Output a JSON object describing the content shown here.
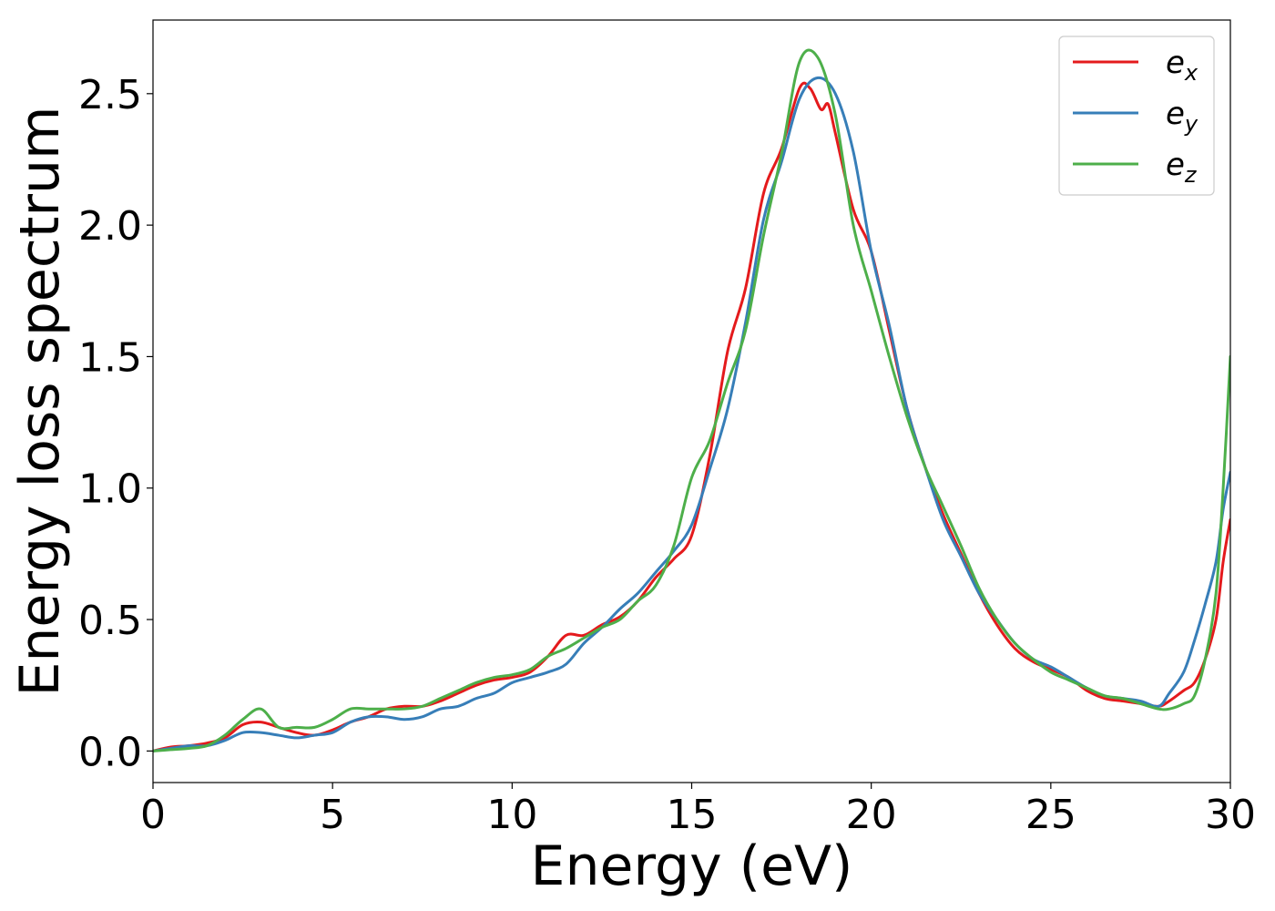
{
  "chart_data": {
    "type": "line",
    "xlabel": "Energy (eV)",
    "ylabel": "Energy loss spectrum",
    "xlim": [
      0,
      30
    ],
    "ylim": [
      -0.12,
      2.78
    ],
    "xticks": [
      0,
      5,
      10,
      15,
      20,
      25,
      30
    ],
    "xtick_labels": [
      "0",
      "5",
      "10",
      "15",
      "20",
      "25",
      "30"
    ],
    "yticks": [
      0.0,
      0.5,
      1.0,
      1.5,
      2.0,
      2.5
    ],
    "ytick_labels": [
      "0.0",
      "0.5",
      "1.0",
      "1.5",
      "2.0",
      "2.5"
    ],
    "grid": false,
    "legend_position": "top-right",
    "series": [
      {
        "name": "e",
        "subscript": "x",
        "color": "#e41a1c",
        "x": [
          0,
          0.5,
          1,
          1.5,
          2,
          2.5,
          3,
          3.5,
          4,
          4.5,
          5,
          5.5,
          6,
          6.5,
          7,
          7.5,
          8,
          8.5,
          9,
          9.5,
          10,
          10.5,
          11,
          11.5,
          12,
          12.5,
          13,
          13.5,
          14,
          14.5,
          15,
          15.5,
          16,
          16.5,
          17,
          17.5,
          18,
          18.3,
          18.6,
          18.8,
          19,
          19.5,
          20,
          20.5,
          21,
          21.5,
          22,
          22.5,
          23,
          23.5,
          24,
          24.5,
          25,
          25.5,
          26,
          26.5,
          27,
          27.5,
          28,
          28.3,
          28.7,
          29,
          29.3,
          29.6,
          29.8,
          30
        ],
        "values": [
          0.0,
          0.015,
          0.02,
          0.03,
          0.05,
          0.1,
          0.11,
          0.09,
          0.07,
          0.06,
          0.08,
          0.11,
          0.13,
          0.16,
          0.17,
          0.17,
          0.19,
          0.22,
          0.25,
          0.27,
          0.28,
          0.3,
          0.36,
          0.44,
          0.44,
          0.48,
          0.51,
          0.57,
          0.66,
          0.73,
          0.82,
          1.12,
          1.52,
          1.76,
          2.12,
          2.29,
          2.52,
          2.52,
          2.44,
          2.46,
          2.35,
          2.06,
          1.9,
          1.6,
          1.3,
          1.08,
          0.9,
          0.75,
          0.6,
          0.48,
          0.39,
          0.34,
          0.31,
          0.28,
          0.23,
          0.2,
          0.19,
          0.18,
          0.17,
          0.19,
          0.23,
          0.26,
          0.35,
          0.5,
          0.72,
          0.88
        ]
      },
      {
        "name": "e",
        "subscript": "y",
        "color": "#377eb8",
        "x": [
          0,
          0.5,
          1,
          1.5,
          2,
          2.5,
          3,
          3.5,
          4,
          4.5,
          5,
          5.5,
          6,
          6.5,
          7,
          7.5,
          8,
          8.5,
          9,
          9.5,
          10,
          10.5,
          11,
          11.5,
          12,
          12.5,
          13,
          13.5,
          14,
          14.5,
          15,
          15.5,
          16,
          16.5,
          17,
          17.5,
          18,
          18.5,
          19,
          19.5,
          20,
          20.5,
          21,
          21.5,
          22,
          22.5,
          23,
          23.5,
          24,
          24.5,
          25,
          25.5,
          26,
          26.5,
          27,
          27.5,
          28,
          28.3,
          28.7,
          29,
          29.3,
          29.6,
          29.8,
          30
        ],
        "values": [
          0.0,
          0.01,
          0.02,
          0.02,
          0.04,
          0.07,
          0.07,
          0.06,
          0.05,
          0.06,
          0.07,
          0.11,
          0.13,
          0.13,
          0.12,
          0.13,
          0.16,
          0.17,
          0.2,
          0.22,
          0.26,
          0.28,
          0.3,
          0.33,
          0.41,
          0.47,
          0.54,
          0.6,
          0.68,
          0.76,
          0.86,
          1.07,
          1.3,
          1.63,
          2.02,
          2.24,
          2.48,
          2.56,
          2.5,
          2.28,
          1.9,
          1.62,
          1.3,
          1.08,
          0.88,
          0.74,
          0.6,
          0.5,
          0.41,
          0.35,
          0.32,
          0.28,
          0.24,
          0.21,
          0.2,
          0.19,
          0.17,
          0.22,
          0.3,
          0.42,
          0.56,
          0.72,
          0.92,
          1.06
        ]
      },
      {
        "name": "e",
        "subscript": "z",
        "color": "#4daf4a",
        "x": [
          0,
          0.5,
          1,
          1.5,
          2,
          2.5,
          3,
          3.5,
          4,
          4.5,
          5,
          5.5,
          6,
          6.5,
          7,
          7.5,
          8,
          8.5,
          9,
          9.5,
          10,
          10.5,
          11,
          11.5,
          12,
          12.5,
          13,
          13.5,
          14,
          14.5,
          15,
          15.5,
          16,
          16.5,
          17,
          17.5,
          18,
          18.5,
          19,
          19.5,
          20,
          20.5,
          21,
          21.5,
          22,
          22.5,
          23,
          23.5,
          24,
          24.5,
          25,
          25.5,
          26,
          26.5,
          27,
          27.5,
          28,
          28.3,
          28.7,
          29,
          29.3,
          29.6,
          29.8,
          30
        ],
        "values": [
          0.0,
          0.005,
          0.01,
          0.02,
          0.06,
          0.12,
          0.16,
          0.09,
          0.09,
          0.09,
          0.12,
          0.16,
          0.16,
          0.16,
          0.16,
          0.17,
          0.2,
          0.23,
          0.26,
          0.28,
          0.29,
          0.31,
          0.36,
          0.39,
          0.43,
          0.47,
          0.5,
          0.57,
          0.63,
          0.78,
          1.04,
          1.18,
          1.4,
          1.6,
          1.96,
          2.27,
          2.62,
          2.64,
          2.42,
          2.0,
          1.75,
          1.5,
          1.27,
          1.08,
          0.93,
          0.78,
          0.62,
          0.5,
          0.41,
          0.35,
          0.3,
          0.27,
          0.24,
          0.21,
          0.2,
          0.18,
          0.16,
          0.16,
          0.18,
          0.21,
          0.35,
          0.6,
          1.0,
          1.5
        ]
      }
    ]
  }
}
